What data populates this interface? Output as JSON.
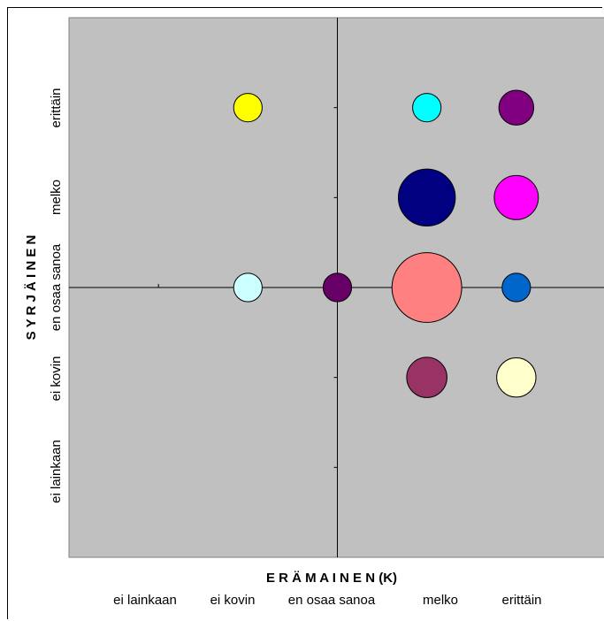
{
  "chart_data": {
    "type": "bubble",
    "xlabel": "E R Ä M A I N E N (K)",
    "ylabel": "S Y R J Ä I N E N",
    "categories": [
      "ei lainkaan",
      "ei kovin",
      "en osaa sanoa",
      "melko",
      "erittäin"
    ],
    "xlim": [
      0,
      6
    ],
    "ylim": [
      0,
      6
    ],
    "grid": false,
    "plot_background": "#c0c0c0",
    "points": [
      {
        "x": 2,
        "y": 5,
        "size": 1.0,
        "color": "#ffff00"
      },
      {
        "x": 4,
        "y": 5,
        "size": 1.0,
        "color": "#00ffff"
      },
      {
        "x": 5,
        "y": 5,
        "size": 1.5,
        "color": "#800080"
      },
      {
        "x": 4,
        "y": 4,
        "size": 4.0,
        "color": "#000080"
      },
      {
        "x": 5,
        "y": 4,
        "size": 2.4,
        "color": "#ff00ff"
      },
      {
        "x": 2,
        "y": 3,
        "size": 1.0,
        "color": "#ccffff"
      },
      {
        "x": 3,
        "y": 3,
        "size": 1.0,
        "color": "#660066"
      },
      {
        "x": 4,
        "y": 3,
        "size": 6.0,
        "color": "#ff8080"
      },
      {
        "x": 5,
        "y": 3,
        "size": 1.0,
        "color": "#0066cc"
      },
      {
        "x": 4,
        "y": 2,
        "size": 2.0,
        "color": "#993366"
      },
      {
        "x": 5,
        "y": 2,
        "size": 1.9,
        "color": "#ffffcc"
      }
    ]
  }
}
